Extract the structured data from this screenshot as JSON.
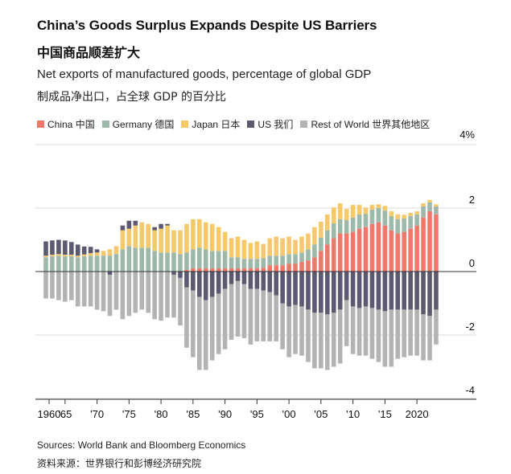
{
  "title": "China’s Goods Surplus Expands Despite US Barriers",
  "title_zh": "中国商品顺差扩大",
  "subtitle": "Net exports of manufactured goods, percentage of global GDP",
  "subtitle_zh": "制成品净出口，占全球 GDP 的百分比",
  "source": "Sources: World Bank and Bloomberg Economics",
  "source_zh": "资料来源：世界银行和彭博经济研究院",
  "chart_data": {
    "type": "bar",
    "stacked": true,
    "years": [
      1962,
      1963,
      1964,
      1965,
      1966,
      1967,
      1968,
      1969,
      1970,
      1971,
      1972,
      1973,
      1974,
      1975,
      1976,
      1977,
      1978,
      1979,
      1980,
      1981,
      1982,
      1983,
      1984,
      1985,
      1986,
      1987,
      1988,
      1989,
      1990,
      1991,
      1992,
      1993,
      1994,
      1995,
      1996,
      1997,
      1998,
      1999,
      2000,
      2001,
      2002,
      2003,
      2004,
      2005,
      2006,
      2007,
      2008,
      2009,
      2010,
      2011,
      2012,
      2013,
      2014,
      2015,
      2016,
      2017,
      2018,
      2019,
      2020,
      2021,
      2022,
      2023
    ],
    "x_tick_labels": [
      "1960",
      "'65",
      "'70",
      "'75",
      "'80",
      "'85",
      "'90",
      "'95",
      "'00",
      "'05",
      "'10",
      "'15",
      "2020"
    ],
    "y_tick_labels": [
      "4%",
      "2",
      "0",
      "-2",
      "-4"
    ],
    "ylim": [
      -4,
      4
    ],
    "series": [
      {
        "name": "China 中国",
        "color": "#f0786a",
        "values": [
          0,
          0,
          0,
          0,
          0,
          0,
          0,
          0,
          0,
          0,
          0,
          0,
          0,
          0,
          0,
          0,
          0,
          0,
          0,
          0,
          0,
          0,
          0.05,
          0.1,
          0.1,
          0.1,
          0.1,
          0.1,
          0.1,
          0.1,
          0.1,
          0.1,
          0.1,
          0.1,
          0.12,
          0.2,
          0.2,
          0.2,
          0.25,
          0.25,
          0.3,
          0.35,
          0.45,
          0.65,
          0.85,
          1.05,
          1.2,
          1.2,
          1.25,
          1.35,
          1.4,
          1.5,
          1.55,
          1.45,
          1.3,
          1.2,
          1.25,
          1.35,
          1.45,
          1.7,
          1.9,
          1.8
        ]
      },
      {
        "name": "Germany 德国",
        "color": "#9eb8aa",
        "values": [
          0.45,
          0.48,
          0.5,
          0.48,
          0.48,
          0.45,
          0.48,
          0.5,
          0.5,
          0.5,
          0.5,
          0.55,
          0.7,
          0.8,
          0.75,
          0.75,
          0.75,
          0.65,
          0.6,
          0.6,
          0.6,
          0.55,
          0.55,
          0.6,
          0.65,
          0.6,
          0.55,
          0.55,
          0.55,
          0.35,
          0.35,
          0.3,
          0.3,
          0.3,
          0.3,
          0.3,
          0.3,
          0.3,
          0.3,
          0.3,
          0.3,
          0.35,
          0.4,
          0.42,
          0.45,
          0.47,
          0.45,
          0.42,
          0.45,
          0.45,
          0.42,
          0.45,
          0.45,
          0.47,
          0.45,
          0.45,
          0.42,
          0.4,
          0.35,
          0.35,
          0.28,
          0.25
        ]
      },
      {
        "name": "Japan 日本",
        "color": "#f5c96a",
        "values": [
          0.05,
          0.05,
          0.05,
          0.05,
          0.05,
          0.05,
          0.06,
          0.08,
          0.1,
          0.15,
          0.2,
          0.25,
          0.6,
          0.55,
          0.7,
          0.8,
          0.75,
          0.65,
          0.75,
          0.85,
          0.7,
          0.75,
          0.9,
          0.95,
          0.9,
          0.85,
          0.85,
          0.75,
          0.6,
          0.6,
          0.65,
          0.6,
          0.5,
          0.55,
          0.45,
          0.55,
          0.6,
          0.55,
          0.55,
          0.45,
          0.5,
          0.5,
          0.55,
          0.5,
          0.5,
          0.5,
          0.5,
          0.35,
          0.4,
          0.3,
          0.2,
          0.15,
          0.12,
          0.15,
          0.15,
          0.15,
          0.12,
          0.1,
          0.1,
          0.1,
          0.08,
          0.07
        ]
      },
      {
        "name": "US 我们",
        "color": "#5c5a70",
        "values": [
          0.45,
          0.45,
          0.45,
          0.45,
          0.4,
          0.35,
          0.25,
          0.2,
          0.1,
          0,
          -0.1,
          0,
          0.15,
          0.25,
          0.15,
          0,
          0,
          0.1,
          0.15,
          0.05,
          -0.1,
          -0.2,
          -0.5,
          -0.6,
          -0.8,
          -0.9,
          -0.8,
          -0.7,
          -0.55,
          -0.4,
          -0.3,
          -0.4,
          -0.55,
          -0.55,
          -0.6,
          -0.65,
          -0.75,
          -1.0,
          -1.1,
          -1.05,
          -1.1,
          -1.2,
          -1.3,
          -1.3,
          -1.35,
          -1.3,
          -1.2,
          -0.9,
          -1.1,
          -1.15,
          -1.1,
          -1.15,
          -1.2,
          -1.25,
          -1.2,
          -1.2,
          -1.2,
          -1.2,
          -1.2,
          -1.35,
          -1.4,
          -1.2
        ]
      },
      {
        "name": "Rest of World 世界其他地区",
        "color": "#b3b3b3",
        "values": [
          -0.85,
          -0.85,
          -0.9,
          -0.95,
          -0.9,
          -1.1,
          -1.1,
          -1.1,
          -1.2,
          -1.25,
          -1.3,
          -1.2,
          -1.5,
          -1.4,
          -1.3,
          -1.2,
          -1.3,
          -1.5,
          -1.55,
          -1.45,
          -1.35,
          -1.5,
          -1.9,
          -2.1,
          -2.3,
          -2.2,
          -2.0,
          -1.9,
          -1.9,
          -1.75,
          -1.75,
          -1.7,
          -1.75,
          -1.65,
          -1.6,
          -1.55,
          -1.45,
          -1.45,
          -1.6,
          -1.55,
          -1.55,
          -1.65,
          -1.75,
          -1.75,
          -1.75,
          -1.7,
          -1.7,
          -1.45,
          -1.5,
          -1.5,
          -1.55,
          -1.6,
          -1.65,
          -1.75,
          -1.8,
          -1.55,
          -1.5,
          -1.45,
          -1.45,
          -1.45,
          -1.4,
          -1.1
        ]
      }
    ]
  }
}
